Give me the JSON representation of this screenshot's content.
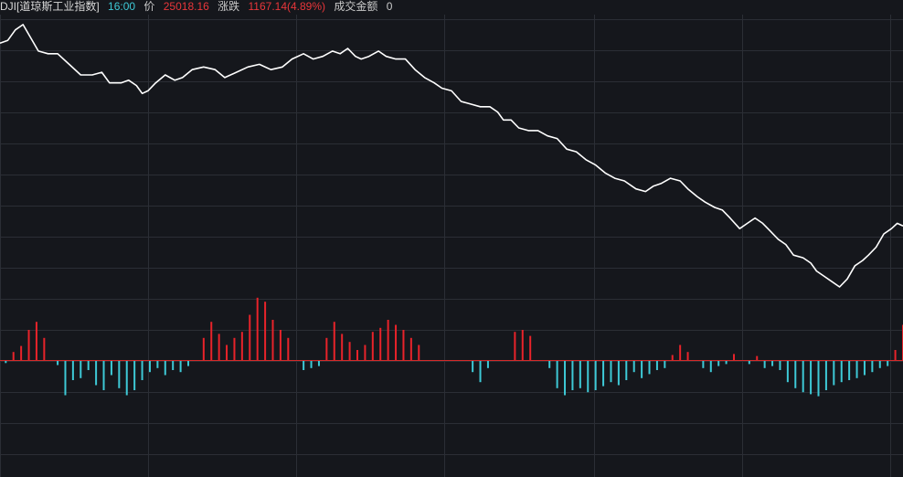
{
  "header": {
    "symbol": "DJI[道琼斯工业指数]",
    "time": "16:00",
    "price_label": "价",
    "price": "25018.16",
    "change_label": "涨跌",
    "change": "1167.14(4.89%)",
    "turnover_label": "成交金额",
    "turnover": "0"
  },
  "colors": {
    "background": "#15171c",
    "grid": "#2b2e35",
    "line": "#ffffff",
    "positive_bar": "#e8232a",
    "negative_bar": "#3ec9d6",
    "baseline": "#d42a2a"
  },
  "chart_data": {
    "type": "line+bar",
    "title": "",
    "xlabel": "",
    "ylabel": "",
    "grid": true,
    "legend": "none",
    "line_ylim": [
      0,
      100
    ],
    "bar_ylim": [
      -100,
      100
    ],
    "line": [
      {
        "x": 0,
        "y": 92
      },
      {
        "x": 4,
        "y": 93
      },
      {
        "x": 8,
        "y": 97
      },
      {
        "x": 12,
        "y": 99
      },
      {
        "x": 16,
        "y": 94
      },
      {
        "x": 20,
        "y": 89
      },
      {
        "x": 25,
        "y": 88
      },
      {
        "x": 30,
        "y": 88
      },
      {
        "x": 36,
        "y": 84
      },
      {
        "x": 42,
        "y": 80
      },
      {
        "x": 48,
        "y": 80
      },
      {
        "x": 53,
        "y": 81
      },
      {
        "x": 57,
        "y": 77
      },
      {
        "x": 63,
        "y": 77
      },
      {
        "x": 67,
        "y": 78
      },
      {
        "x": 71,
        "y": 76
      },
      {
        "x": 74,
        "y": 73
      },
      {
        "x": 77,
        "y": 74
      },
      {
        "x": 81,
        "y": 77
      },
      {
        "x": 86,
        "y": 80
      },
      {
        "x": 91,
        "y": 78
      },
      {
        "x": 95,
        "y": 79
      },
      {
        "x": 100,
        "y": 82
      },
      {
        "x": 106,
        "y": 83
      },
      {
        "x": 112,
        "y": 82
      },
      {
        "x": 117,
        "y": 79
      },
      {
        "x": 123,
        "y": 81
      },
      {
        "x": 129,
        "y": 83
      },
      {
        "x": 135,
        "y": 84
      },
      {
        "x": 141,
        "y": 82
      },
      {
        "x": 147,
        "y": 83
      },
      {
        "x": 152,
        "y": 86
      },
      {
        "x": 158,
        "y": 88
      },
      {
        "x": 163,
        "y": 86
      },
      {
        "x": 168,
        "y": 87
      },
      {
        "x": 173,
        "y": 89
      },
      {
        "x": 177,
        "y": 88
      },
      {
        "x": 181,
        "y": 90
      },
      {
        "x": 185,
        "y": 87
      },
      {
        "x": 188,
        "y": 86
      },
      {
        "x": 192,
        "y": 87
      },
      {
        "x": 197,
        "y": 89
      },
      {
        "x": 201,
        "y": 87
      },
      {
        "x": 206,
        "y": 86
      },
      {
        "x": 211,
        "y": 86
      },
      {
        "x": 216,
        "y": 82
      },
      {
        "x": 221,
        "y": 79
      },
      {
        "x": 226,
        "y": 77
      },
      {
        "x": 230,
        "y": 75
      },
      {
        "x": 235,
        "y": 74
      },
      {
        "x": 240,
        "y": 70
      },
      {
        "x": 245,
        "y": 69
      },
      {
        "x": 250,
        "y": 68
      },
      {
        "x": 255,
        "y": 68
      },
      {
        "x": 259,
        "y": 66
      },
      {
        "x": 262,
        "y": 63
      },
      {
        "x": 266,
        "y": 63
      },
      {
        "x": 270,
        "y": 60
      },
      {
        "x": 275,
        "y": 59
      },
      {
        "x": 280,
        "y": 59
      },
      {
        "x": 285,
        "y": 57
      },
      {
        "x": 290,
        "y": 56
      },
      {
        "x": 295,
        "y": 52
      },
      {
        "x": 300,
        "y": 51
      },
      {
        "x": 305,
        "y": 48
      },
      {
        "x": 310,
        "y": 46
      },
      {
        "x": 315,
        "y": 43
      },
      {
        "x": 320,
        "y": 41
      },
      {
        "x": 325,
        "y": 40
      },
      {
        "x": 331,
        "y": 37
      },
      {
        "x": 336,
        "y": 36
      },
      {
        "x": 340,
        "y": 38
      },
      {
        "x": 344,
        "y": 39
      },
      {
        "x": 349,
        "y": 41
      },
      {
        "x": 354,
        "y": 40
      },
      {
        "x": 358,
        "y": 37
      },
      {
        "x": 363,
        "y": 34
      },
      {
        "x": 367,
        "y": 32
      },
      {
        "x": 372,
        "y": 30
      },
      {
        "x": 376,
        "y": 29
      },
      {
        "x": 380,
        "y": 26
      },
      {
        "x": 385,
        "y": 22
      },
      {
        "x": 389,
        "y": 24
      },
      {
        "x": 393,
        "y": 26
      },
      {
        "x": 397,
        "y": 24
      },
      {
        "x": 401,
        "y": 21
      },
      {
        "x": 405,
        "y": 18
      },
      {
        "x": 409,
        "y": 16
      },
      {
        "x": 413,
        "y": 12
      },
      {
        "x": 418,
        "y": 11
      },
      {
        "x": 422,
        "y": 9
      },
      {
        "x": 425,
        "y": 6
      },
      {
        "x": 429,
        "y": 4
      },
      {
        "x": 433,
        "y": 2
      },
      {
        "x": 437,
        "y": 0
      },
      {
        "x": 441,
        "y": 3
      },
      {
        "x": 445,
        "y": 8
      },
      {
        "x": 449,
        "y": 10
      },
      {
        "x": 452,
        "y": 12
      },
      {
        "x": 456,
        "y": 15
      },
      {
        "x": 460,
        "y": 20
      },
      {
        "x": 464,
        "y": 22
      },
      {
        "x": 467,
        "y": 24
      },
      {
        "x": 470,
        "y": 23
      }
    ],
    "bars": [
      {
        "x": 3,
        "v": -3
      },
      {
        "x": 7,
        "v": 8
      },
      {
        "x": 11,
        "v": 14
      },
      {
        "x": 15,
        "v": 30
      },
      {
        "x": 19,
        "v": 38
      },
      {
        "x": 23,
        "v": 22
      },
      {
        "x": 30,
        "v": -5
      },
      {
        "x": 34,
        "v": -35
      },
      {
        "x": 38,
        "v": -20
      },
      {
        "x": 42,
        "v": -18
      },
      {
        "x": 46,
        "v": -10
      },
      {
        "x": 50,
        "v": -25
      },
      {
        "x": 54,
        "v": -30
      },
      {
        "x": 58,
        "v": -15
      },
      {
        "x": 62,
        "v": -28
      },
      {
        "x": 66,
        "v": -35
      },
      {
        "x": 70,
        "v": -30
      },
      {
        "x": 74,
        "v": -20
      },
      {
        "x": 78,
        "v": -12
      },
      {
        "x": 82,
        "v": -8
      },
      {
        "x": 86,
        "v": -15
      },
      {
        "x": 90,
        "v": -10
      },
      {
        "x": 94,
        "v": -12
      },
      {
        "x": 98,
        "v": -6
      },
      {
        "x": 106,
        "v": 22
      },
      {
        "x": 110,
        "v": 38
      },
      {
        "x": 114,
        "v": 26
      },
      {
        "x": 118,
        "v": 15
      },
      {
        "x": 122,
        "v": 22
      },
      {
        "x": 126,
        "v": 28
      },
      {
        "x": 130,
        "v": 45
      },
      {
        "x": 134,
        "v": 62
      },
      {
        "x": 138,
        "v": 58
      },
      {
        "x": 142,
        "v": 40
      },
      {
        "x": 146,
        "v": 30
      },
      {
        "x": 150,
        "v": 22
      },
      {
        "x": 158,
        "v": -10
      },
      {
        "x": 162,
        "v": -8
      },
      {
        "x": 166,
        "v": -6
      },
      {
        "x": 170,
        "v": 22
      },
      {
        "x": 174,
        "v": 38
      },
      {
        "x": 178,
        "v": 26
      },
      {
        "x": 182,
        "v": 18
      },
      {
        "x": 186,
        "v": 10
      },
      {
        "x": 190,
        "v": 15
      },
      {
        "x": 194,
        "v": 28
      },
      {
        "x": 198,
        "v": 32
      },
      {
        "x": 202,
        "v": 40
      },
      {
        "x": 206,
        "v": 35
      },
      {
        "x": 210,
        "v": 30
      },
      {
        "x": 214,
        "v": 22
      },
      {
        "x": 218,
        "v": 15
      },
      {
        "x": 246,
        "v": -12
      },
      {
        "x": 250,
        "v": -22
      },
      {
        "x": 254,
        "v": -8
      },
      {
        "x": 268,
        "v": 28
      },
      {
        "x": 272,
        "v": 30
      },
      {
        "x": 276,
        "v": 24
      },
      {
        "x": 286,
        "v": -8
      },
      {
        "x": 290,
        "v": -28
      },
      {
        "x": 294,
        "v": -35
      },
      {
        "x": 298,
        "v": -30
      },
      {
        "x": 302,
        "v": -28
      },
      {
        "x": 306,
        "v": -32
      },
      {
        "x": 310,
        "v": -30
      },
      {
        "x": 314,
        "v": -26
      },
      {
        "x": 318,
        "v": -22
      },
      {
        "x": 322,
        "v": -25
      },
      {
        "x": 326,
        "v": -20
      },
      {
        "x": 330,
        "v": -12
      },
      {
        "x": 334,
        "v": -18
      },
      {
        "x": 338,
        "v": -14
      },
      {
        "x": 342,
        "v": -10
      },
      {
        "x": 346,
        "v": -8
      },
      {
        "x": 350,
        "v": 5
      },
      {
        "x": 354,
        "v": 15
      },
      {
        "x": 358,
        "v": 8
      },
      {
        "x": 366,
        "v": -8
      },
      {
        "x": 370,
        "v": -12
      },
      {
        "x": 374,
        "v": -6
      },
      {
        "x": 378,
        "v": -4
      },
      {
        "x": 382,
        "v": 6
      },
      {
        "x": 390,
        "v": -4
      },
      {
        "x": 394,
        "v": 4
      },
      {
        "x": 398,
        "v": -8
      },
      {
        "x": 402,
        "v": -6
      },
      {
        "x": 406,
        "v": -10
      },
      {
        "x": 410,
        "v": -22
      },
      {
        "x": 414,
        "v": -28
      },
      {
        "x": 418,
        "v": -32
      },
      {
        "x": 422,
        "v": -34
      },
      {
        "x": 426,
        "v": -36
      },
      {
        "x": 430,
        "v": -30
      },
      {
        "x": 434,
        "v": -25
      },
      {
        "x": 438,
        "v": -22
      },
      {
        "x": 442,
        "v": -20
      },
      {
        "x": 446,
        "v": -18
      },
      {
        "x": 450,
        "v": -15
      },
      {
        "x": 454,
        "v": -12
      },
      {
        "x": 458,
        "v": -8
      },
      {
        "x": 462,
        "v": -6
      },
      {
        "x": 466,
        "v": 10
      },
      {
        "x": 470,
        "v": 35
      }
    ]
  }
}
